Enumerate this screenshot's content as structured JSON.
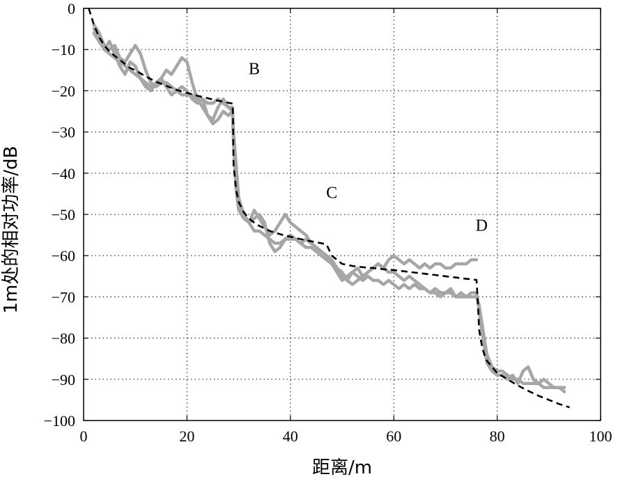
{
  "chart_data": {
    "type": "line",
    "title": "",
    "xlabel": "距离/m",
    "ylabel": "1m处的相对功率/dB",
    "xlim": [
      0,
      100
    ],
    "ylim": [
      -100,
      0
    ],
    "xticks": [
      0,
      20,
      40,
      60,
      80,
      100
    ],
    "xtick_labels": [
      "0",
      "20",
      "40",
      "60",
      "80",
      "100"
    ],
    "yticks": [
      0,
      -10,
      -20,
      -30,
      -40,
      -50,
      -60,
      -70,
      -80,
      -90,
      -100
    ],
    "ytick_labels": [
      "0",
      "−10",
      "−20",
      "−30",
      "−40",
      "−50",
      "−60",
      "−70",
      "−80",
      "−90",
      "−100"
    ],
    "grid": true,
    "legend": "none",
    "annotations": [
      {
        "text": "B",
        "x": 33,
        "y": -16
      },
      {
        "text": "C",
        "x": 48,
        "y": -46
      },
      {
        "text": "D",
        "x": 77,
        "y": -54
      }
    ],
    "series": [
      {
        "style": "solid",
        "color": "#a6a6a6",
        "x": [
          2,
          3,
          4,
          5,
          6,
          7,
          8,
          9,
          10,
          11,
          12,
          13,
          14,
          15,
          16,
          17,
          18,
          19,
          20,
          21,
          22,
          23,
          24,
          25,
          26,
          27,
          28,
          28.8,
          29,
          29.5,
          30,
          31,
          32,
          33,
          34,
          35,
          36,
          37,
          38,
          39,
          40,
          41,
          42,
          43,
          44,
          45,
          46,
          47,
          48,
          49,
          50,
          51,
          52,
          53,
          54,
          55,
          56,
          57,
          58,
          59,
          60,
          61,
          62,
          63,
          64,
          65,
          66,
          67,
          68,
          69,
          70,
          71,
          72,
          73,
          74,
          75,
          76
        ],
        "y": [
          -4,
          -6,
          -9,
          -10,
          -9,
          -12,
          -13,
          -11,
          -9,
          -11,
          -15,
          -18,
          -19,
          -17,
          -15,
          -16,
          -14,
          -12,
          -13,
          -18,
          -22,
          -24,
          -26,
          -27,
          -24,
          -22,
          -24,
          -25,
          -30,
          -38,
          -46,
          -50,
          -52,
          -49,
          -51,
          -53,
          -55,
          -54,
          -52,
          -50,
          -52,
          -53,
          -54,
          -55,
          -57,
          -58,
          -59,
          -60,
          -61,
          -63,
          -65,
          -66,
          -64,
          -63,
          -65,
          -64,
          -63,
          -62,
          -63,
          -61,
          -60,
          -61,
          -62,
          -61,
          -62,
          -63,
          -62,
          -63,
          -62,
          -62,
          -63,
          -63,
          -62,
          -62,
          -62,
          -61,
          -61
        ]
      },
      {
        "style": "solid",
        "color": "#a6a6a6",
        "x": [
          2,
          3,
          4,
          5,
          6,
          7,
          8,
          9,
          10,
          11,
          12,
          13,
          14,
          15,
          16,
          17,
          18,
          19,
          20,
          21,
          22,
          23,
          24,
          25,
          26,
          27,
          28,
          28.8,
          29,
          29.5,
          30,
          31,
          32,
          33,
          34,
          35,
          36,
          37,
          38,
          39,
          40,
          41,
          42,
          43,
          44,
          45,
          46,
          47,
          48,
          49,
          50,
          51,
          52,
          53,
          54,
          55,
          56,
          57,
          58,
          59,
          60,
          61,
          62,
          63,
          64,
          65,
          66,
          67,
          68,
          69,
          70,
          71,
          72,
          73,
          74,
          75,
          76,
          76.5,
          77,
          77.5,
          78,
          79,
          80,
          81,
          82,
          83,
          84,
          85,
          86,
          87,
          88,
          89,
          90,
          91,
          92,
          93
        ],
        "y": [
          -6,
          -8,
          -10,
          -11,
          -12,
          -13,
          -14,
          -15,
          -16,
          -17,
          -18,
          -19,
          -19,
          -18,
          -18,
          -19,
          -20,
          -21,
          -21,
          -21,
          -22,
          -22,
          -23,
          -23,
          -22,
          -23,
          -24,
          -24,
          -32,
          -42,
          -48,
          -50,
          -52,
          -54,
          -54,
          -55,
          -56,
          -57,
          -57,
          -56,
          -56,
          -56,
          -57,
          -58,
          -58,
          -59,
          -60,
          -61,
          -62,
          -64,
          -66,
          -65,
          -64,
          -65,
          -66,
          -65,
          -66,
          -66,
          -67,
          -66,
          -67,
          -68,
          -67,
          -68,
          -67,
          -68,
          -68,
          -69,
          -69,
          -70,
          -69,
          -69,
          -70,
          -69,
          -70,
          -70,
          -70,
          -72,
          -76,
          -80,
          -84,
          -87,
          -88,
          -88,
          -89,
          -90,
          -90,
          -91,
          -91,
          -91,
          -91,
          -92,
          -92,
          -92,
          -92,
          -92
        ]
      },
      {
        "style": "solid",
        "color": "#a6a6a6",
        "x": [
          2,
          3,
          4,
          5,
          6,
          7,
          8,
          9,
          10,
          11,
          12,
          13,
          14,
          15,
          16,
          17,
          18,
          19,
          20,
          21,
          22,
          23,
          24,
          25,
          26,
          27,
          28,
          28.8,
          29,
          29.5,
          30,
          31,
          32,
          33,
          34,
          35,
          36,
          37,
          38,
          39,
          40,
          41,
          42,
          43,
          44,
          45,
          46,
          47,
          48,
          49,
          50,
          51,
          52,
          53,
          54,
          55,
          56,
          57,
          58,
          59,
          60,
          61,
          62,
          63,
          64,
          65,
          66,
          67,
          68,
          69,
          70,
          71,
          72,
          73,
          74,
          75,
          76,
          76.5,
          77,
          77.5,
          78,
          79,
          80,
          81,
          82,
          83,
          84,
          85,
          86,
          87,
          88,
          89,
          90,
          91,
          92,
          93
        ],
        "y": [
          -5,
          -7,
          -10,
          -8,
          -11,
          -14,
          -16,
          -13,
          -14,
          -17,
          -19,
          -20,
          -18,
          -17,
          -19,
          -21,
          -20,
          -19,
          -20,
          -22,
          -23,
          -22,
          -26,
          -28,
          -27,
          -25,
          -26,
          -25,
          -33,
          -44,
          -49,
          -51,
          -52,
          -51,
          -50,
          -52,
          -57,
          -59,
          -58,
          -56,
          -55,
          -56,
          -57,
          -56,
          -57,
          -58,
          -59,
          -60,
          -62,
          -63,
          -64,
          -66,
          -67,
          -66,
          -65,
          -64,
          -63,
          -62,
          -63,
          -64,
          -64,
          -65,
          -66,
          -65,
          -66,
          -67,
          -68,
          -69,
          -68,
          -69,
          -69,
          -68,
          -70,
          -70,
          -70,
          -69,
          -69,
          -73,
          -78,
          -82,
          -86,
          -88,
          -89,
          -89,
          -90,
          -89,
          -91,
          -88,
          -87,
          -90,
          -91,
          -90,
          -91,
          -92,
          -92,
          -93
        ]
      },
      {
        "style": "dashed",
        "color": "#000000",
        "x": [
          1,
          2,
          3,
          4,
          5,
          6,
          7,
          8,
          9,
          10,
          12,
          14,
          16,
          18,
          20,
          22,
          24,
          26,
          28,
          28.8,
          28.9,
          29,
          29.5,
          30,
          31,
          32,
          33,
          34,
          35,
          36,
          38,
          40,
          42,
          44,
          46,
          47,
          48,
          50,
          52,
          54,
          56,
          58,
          60,
          62,
          64,
          66,
          68,
          70,
          72,
          74,
          76,
          76.3,
          76.5,
          77,
          77.5,
          78,
          79,
          80,
          82,
          84,
          86,
          88,
          90,
          92,
          94
        ],
        "y": [
          0,
          -4,
          -7,
          -9,
          -10.5,
          -11.5,
          -12.5,
          -13.5,
          -14.5,
          -15,
          -16.5,
          -17.8,
          -18.8,
          -19.8,
          -20.5,
          -21.2,
          -21.8,
          -22.4,
          -22.9,
          -23.1,
          -26,
          -38,
          -44,
          -47,
          -49.5,
          -51,
          -52,
          -52.8,
          -53.4,
          -54,
          -54.8,
          -55.4,
          -56,
          -56.5,
          -57,
          -57.3,
          -60,
          -62,
          -62.5,
          -62.8,
          -63,
          -63.3,
          -63.5,
          -63.8,
          -64.1,
          -64.4,
          -64.7,
          -65,
          -65.3,
          -65.6,
          -65.9,
          -72,
          -78,
          -81.5,
          -84,
          -85.5,
          -87,
          -88.5,
          -90,
          -91.5,
          -92.8,
          -94,
          -95,
          -96,
          -96.8
        ]
      }
    ]
  }
}
